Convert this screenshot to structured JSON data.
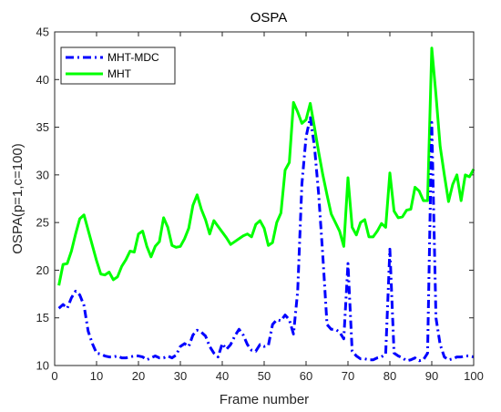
{
  "chart_data": {
    "type": "line",
    "title": "OSPA",
    "xlabel": "Frame number",
    "ylabel": "OSPA(p=1,c=100)",
    "xlim": [
      0,
      100
    ],
    "ylim": [
      10,
      45
    ],
    "xticks": [
      0,
      10,
      20,
      30,
      40,
      50,
      60,
      70,
      80,
      90,
      100
    ],
    "yticks": [
      10,
      15,
      20,
      25,
      30,
      35,
      40,
      45
    ],
    "grid": false,
    "legend_position": "top-left",
    "series": [
      {
        "name": "MHT-MDC",
        "color": "#0000ff",
        "line_style": "dash-dot",
        "x": [
          1,
          2,
          3,
          4,
          5,
          6,
          7,
          8,
          9,
          10,
          11,
          12,
          13,
          14,
          15,
          16,
          17,
          18,
          19,
          20,
          21,
          22,
          23,
          24,
          25,
          26,
          27,
          28,
          29,
          30,
          31,
          32,
          33,
          34,
          35,
          36,
          37,
          38,
          39,
          40,
          41,
          42,
          43,
          44,
          45,
          46,
          47,
          48,
          49,
          50,
          51,
          52,
          53,
          54,
          55,
          56,
          57,
          58,
          59,
          60,
          61,
          62,
          63,
          64,
          65,
          66,
          67,
          68,
          69,
          70,
          71,
          72,
          73,
          74,
          75,
          76,
          77,
          78,
          79,
          80,
          81,
          82,
          83,
          84,
          85,
          86,
          87,
          88,
          89,
          90,
          91,
          92,
          93,
          94,
          95,
          96,
          97,
          98,
          99,
          100
        ],
        "y": [
          16.0,
          16.4,
          16.0,
          17.1,
          17.8,
          17.4,
          16.3,
          13.6,
          12.3,
          11.3,
          11.2,
          11.0,
          10.9,
          10.9,
          11.0,
          10.8,
          10.8,
          10.9,
          11.0,
          11.0,
          10.9,
          10.6,
          10.8,
          11.0,
          10.8,
          10.8,
          11.0,
          10.8,
          11.1,
          12.0,
          12.3,
          12.0,
          13.2,
          13.7,
          13.5,
          13.1,
          12.0,
          11.3,
          10.9,
          12.3,
          11.7,
          12.2,
          13.1,
          13.8,
          13.2,
          12.2,
          11.6,
          11.5,
          12.2,
          12.0,
          12.1,
          14.3,
          14.8,
          14.7,
          15.3,
          14.8,
          13.3,
          17.8,
          29.0,
          34.0,
          36.0,
          33.0,
          28.0,
          21.5,
          14.3,
          13.8,
          13.8,
          13.5,
          12.8,
          20.7,
          11.5,
          11.0,
          10.7,
          10.7,
          10.6,
          10.6,
          10.8,
          10.9,
          11.2,
          22.2,
          11.3,
          11.0,
          10.8,
          10.5,
          10.6,
          10.8,
          10.5,
          10.6,
          11.3,
          35.5,
          15.0,
          12.2,
          10.9,
          10.6,
          10.7,
          10.9,
          10.9,
          11.0,
          11.0,
          10.9
        ]
      },
      {
        "name": "MHT",
        "color": "#00ff00",
        "line_style": "solid",
        "x": [
          1,
          2,
          3,
          4,
          5,
          6,
          7,
          8,
          9,
          10,
          11,
          12,
          13,
          14,
          15,
          16,
          17,
          18,
          19,
          20,
          21,
          22,
          23,
          24,
          25,
          26,
          27,
          28,
          29,
          30,
          31,
          32,
          33,
          34,
          35,
          36,
          37,
          38,
          39,
          40,
          41,
          42,
          43,
          44,
          45,
          46,
          47,
          48,
          49,
          50,
          51,
          52,
          53,
          54,
          55,
          56,
          57,
          58,
          59,
          60,
          61,
          62,
          63,
          64,
          65,
          66,
          67,
          68,
          69,
          70,
          71,
          72,
          73,
          74,
          75,
          76,
          77,
          78,
          79,
          80,
          81,
          82,
          83,
          84,
          85,
          86,
          87,
          88,
          89,
          90,
          91,
          92,
          93,
          94,
          95,
          96,
          97,
          98,
          99,
          100
        ],
        "y": [
          18.4,
          20.6,
          20.7,
          22.0,
          23.8,
          25.4,
          25.8,
          24.2,
          22.6,
          21.0,
          19.6,
          19.5,
          19.8,
          19.0,
          19.3,
          20.4,
          21.1,
          22.0,
          21.9,
          23.8,
          24.1,
          22.5,
          21.4,
          22.5,
          23.0,
          25.5,
          24.5,
          22.6,
          22.4,
          22.5,
          23.3,
          24.4,
          26.8,
          27.9,
          26.4,
          25.3,
          23.8,
          25.2,
          24.6,
          24.0,
          23.4,
          22.7,
          23.0,
          23.3,
          23.6,
          23.8,
          23.5,
          24.8,
          25.2,
          24.4,
          22.6,
          22.9,
          25.0,
          26.0,
          30.5,
          31.3,
          37.6,
          36.6,
          35.4,
          35.8,
          37.5,
          35.0,
          32.4,
          30.0,
          27.9,
          25.9,
          25.0,
          24.1,
          22.5,
          29.7,
          24.5,
          23.7,
          25.0,
          25.3,
          23.5,
          23.5,
          24.1,
          24.9,
          24.5,
          30.2,
          26.2,
          25.5,
          25.6,
          26.3,
          26.4,
          28.7,
          28.3,
          27.3,
          27.3,
          43.3,
          38.4,
          33.0,
          30.0,
          27.2,
          29.0,
          30.0,
          27.3,
          30.0,
          29.8,
          30.6
        ]
      }
    ]
  }
}
